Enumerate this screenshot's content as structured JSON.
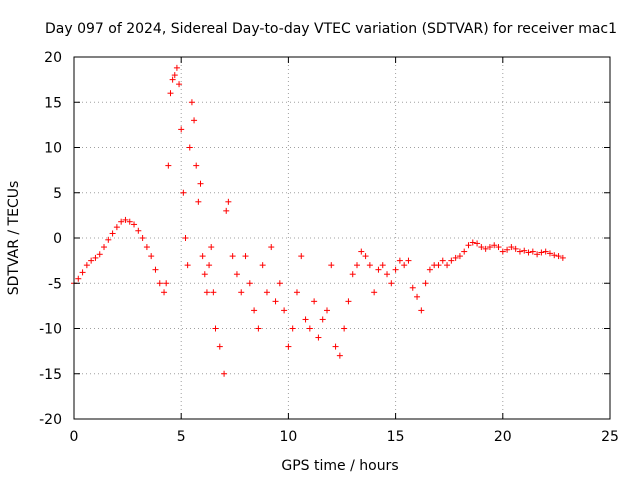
{
  "chart_data": {
    "type": "scatter",
    "title": "Day 097 of 2024, Sidereal Day-to-day VTEC variation (SDTVAR) for receiver mac1",
    "xlabel": "GPS time / hours",
    "ylabel": "SDTVAR / TECUs",
    "xlim": [
      0,
      25
    ],
    "ylim": [
      -20,
      20
    ],
    "xticks": [
      0,
      5,
      10,
      15,
      20,
      25
    ],
    "yticks": [
      -20,
      -15,
      -10,
      -5,
      0,
      5,
      10,
      15,
      20
    ],
    "grid": true,
    "marker": "+",
    "color": "#ff0000",
    "series": [
      {
        "name": "SDTVAR",
        "x": [
          0.0,
          0.2,
          0.4,
          0.6,
          0.8,
          1.0,
          1.2,
          1.4,
          1.6,
          1.8,
          2.0,
          2.2,
          2.4,
          2.6,
          2.8,
          3.0,
          3.2,
          3.4,
          3.6,
          3.8,
          4.0,
          4.2,
          4.3,
          4.4,
          4.5,
          4.6,
          4.7,
          4.8,
          4.9,
          5.0,
          5.1,
          5.2,
          5.3,
          5.4,
          5.5,
          5.6,
          5.7,
          5.8,
          5.9,
          6.0,
          6.1,
          6.2,
          6.3,
          6.4,
          6.5,
          6.6,
          6.8,
          7.0,
          7.1,
          7.2,
          7.4,
          7.6,
          7.8,
          8.0,
          8.2,
          8.4,
          8.6,
          8.8,
          9.0,
          9.2,
          9.4,
          9.6,
          9.8,
          10.0,
          10.2,
          10.4,
          10.6,
          10.8,
          11.0,
          11.2,
          11.4,
          11.6,
          11.8,
          12.0,
          12.2,
          12.4,
          12.6,
          12.8,
          13.0,
          13.2,
          13.4,
          13.6,
          13.8,
          14.0,
          14.2,
          14.4,
          14.6,
          14.8,
          15.0,
          15.2,
          15.4,
          15.6,
          15.8,
          16.0,
          16.2,
          16.4,
          16.6,
          16.8,
          17.0,
          17.2,
          17.4,
          17.6,
          17.8,
          18.0,
          18.2,
          18.4,
          18.6,
          18.8,
          19.0,
          19.2,
          19.4,
          19.6,
          19.8,
          20.0,
          20.2,
          20.4,
          20.6,
          20.8,
          21.0,
          21.2,
          21.4,
          21.6,
          21.8,
          22.0,
          22.2,
          22.4,
          22.6,
          22.8
        ],
        "y": [
          -5.0,
          -4.5,
          -3.8,
          -3.0,
          -2.5,
          -2.2,
          -1.8,
          -1.0,
          -0.2,
          0.5,
          1.2,
          1.8,
          2.0,
          1.8,
          1.5,
          0.8,
          0.0,
          -1.0,
          -2.0,
          -3.5,
          -5.0,
          -6.0,
          -5.0,
          8.0,
          16.0,
          17.5,
          18.0,
          18.8,
          17.0,
          12.0,
          5.0,
          0.0,
          -3.0,
          10.0,
          15.0,
          13.0,
          8.0,
          4.0,
          6.0,
          -2.0,
          -4.0,
          -6.0,
          -3.0,
          -1.0,
          -6.0,
          -10.0,
          -12.0,
          -15.0,
          3.0,
          4.0,
          -2.0,
          -4.0,
          -6.0,
          -2.0,
          -5.0,
          -8.0,
          -10.0,
          -3.0,
          -6.0,
          -1.0,
          -7.0,
          -5.0,
          -8.0,
          -12.0,
          -10.0,
          -6.0,
          -2.0,
          -9.0,
          -10.0,
          -7.0,
          -11.0,
          -9.0,
          -8.0,
          -3.0,
          -12.0,
          -13.0,
          -10.0,
          -7.0,
          -4.0,
          -3.0,
          -1.5,
          -2.0,
          -3.0,
          -6.0,
          -3.5,
          -3.0,
          -4.0,
          -5.0,
          -3.5,
          -2.5,
          -3.0,
          -2.5,
          -5.5,
          -6.5,
          -8.0,
          -5.0,
          -3.5,
          -3.0,
          -3.0,
          -2.5,
          -3.0,
          -2.5,
          -2.2,
          -2.0,
          -1.5,
          -0.8,
          -0.5,
          -0.6,
          -1.0,
          -1.2,
          -1.0,
          -0.8,
          -1.0,
          -1.5,
          -1.3,
          -1.0,
          -1.2,
          -1.5,
          -1.4,
          -1.6,
          -1.5,
          -1.8,
          -1.6,
          -1.5,
          -1.7,
          -1.9,
          -2.0,
          -2.2
        ]
      }
    ]
  }
}
